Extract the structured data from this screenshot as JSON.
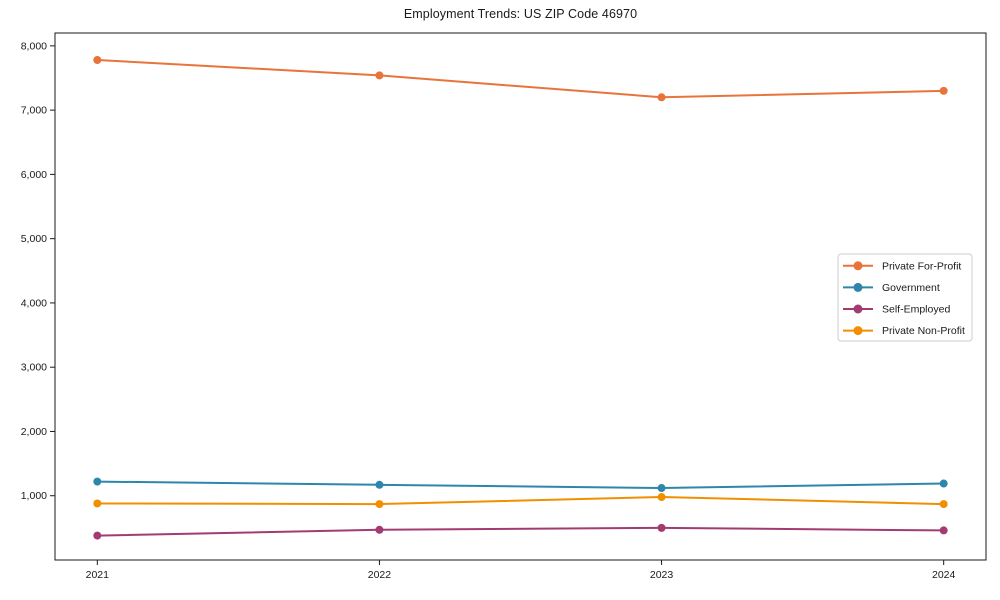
{
  "title": "Employment Trends: US ZIP Code 46970",
  "colors": {
    "background": "#ffffff",
    "spine": "#1a1a1a",
    "tick_text": "#1a1a1a",
    "legend_border": "#cccccc",
    "legend_background": "#ffffff"
  },
  "chart_data": {
    "type": "line",
    "title": "Employment Trends: US ZIP Code 46970",
    "xlabel": "",
    "ylabel": "",
    "x": [
      2021,
      2022,
      2023,
      2024
    ],
    "xtick_labels": [
      "2021",
      "2022",
      "2023",
      "2024"
    ],
    "series": [
      {
        "name": "Private For-Profit",
        "color": "#e8743b",
        "values": [
          7780,
          7540,
          7200,
          7300
        ]
      },
      {
        "name": "Government",
        "color": "#2e86ab",
        "values": [
          1220,
          1170,
          1120,
          1190
        ]
      },
      {
        "name": "Self-Employed",
        "color": "#a23b72",
        "values": [
          380,
          470,
          500,
          460
        ]
      },
      {
        "name": "Private Non-Profit",
        "color": "#f18f01",
        "values": [
          880,
          870,
          980,
          870
        ]
      }
    ],
    "xlim": [
      2020.85,
      2024.15
    ],
    "ylim": [
      0,
      8200
    ],
    "yticks": [
      1000,
      2000,
      3000,
      4000,
      5000,
      6000,
      7000,
      8000
    ],
    "ytick_labels": [
      "1,000",
      "2,000",
      "3,000",
      "4,000",
      "5,000",
      "6,000",
      "7,000",
      "8,000"
    ],
    "grid": false,
    "legend_position": "center-right",
    "marker": "circle",
    "marker_radius": 4,
    "line_width": 2
  }
}
